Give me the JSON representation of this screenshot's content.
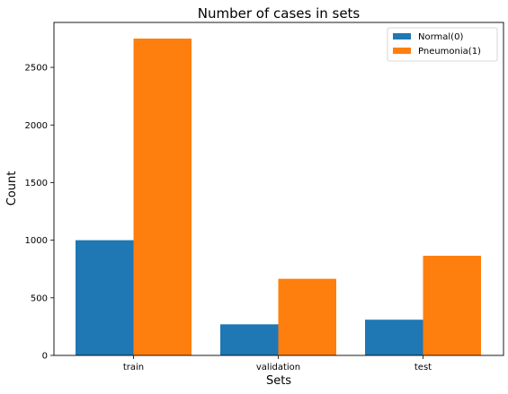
{
  "chart_data": {
    "type": "bar",
    "title": "Number of cases in sets",
    "xlabel": "Sets",
    "ylabel": "Count",
    "categories": [
      "train",
      "validation",
      "test"
    ],
    "series": [
      {
        "name": "Normal(0)",
        "color": "#1f77b4",
        "values": [
          1000,
          270,
          310
        ]
      },
      {
        "name": "Pneumonia(1)",
        "color": "#ff7f0e",
        "values": [
          2750,
          665,
          865
        ]
      }
    ],
    "yticks": [
      0,
      500,
      1000,
      1500,
      2000,
      2500
    ],
    "ylim": [
      0,
      2890
    ],
    "legend_position": "top-right",
    "grid": false
  }
}
